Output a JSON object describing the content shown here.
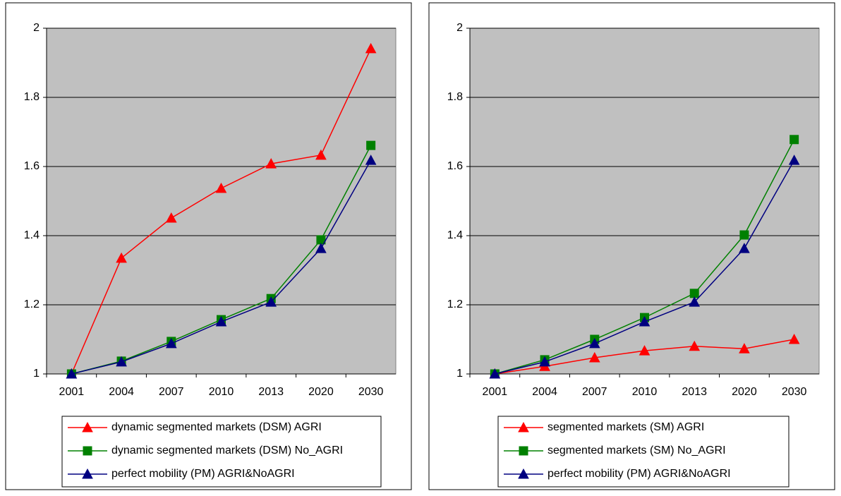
{
  "chart_data": [
    {
      "type": "line",
      "categories": [
        "2001",
        "2004",
        "2007",
        "2010",
        "2013",
        "2020",
        "2030"
      ],
      "ylim": [
        1,
        2
      ],
      "yticks": [
        1,
        1.2,
        1.4,
        1.6,
        1.8,
        2
      ],
      "grid": true,
      "series": [
        {
          "name": "dynamic segmented markets (DSM)  AGRI",
          "color": "#ff0000",
          "marker": "triangle",
          "values": [
            1.0,
            1.335,
            1.451,
            1.537,
            1.608,
            1.633,
            1.941
          ]
        },
        {
          "name": "dynamic segmented markets (DSM)  No_AGRI",
          "color": "#008000",
          "marker": "square",
          "values": [
            1.0,
            1.037,
            1.094,
            1.157,
            1.218,
            1.388,
            1.661
          ]
        },
        {
          "name": "perfect mobility (PM) AGRI&NoAGRI",
          "color": "#000080",
          "marker": "triangle",
          "values": [
            1.0,
            1.035,
            1.088,
            1.151,
            1.208,
            1.363,
            1.618
          ]
        }
      ]
    },
    {
      "type": "line",
      "categories": [
        "2001",
        "2004",
        "2007",
        "2010",
        "2013",
        "2020",
        "2030"
      ],
      "ylim": [
        1,
        2
      ],
      "yticks": [
        1,
        1.2,
        1.4,
        1.6,
        1.8,
        2
      ],
      "grid": true,
      "series": [
        {
          "name": "segmented markets (SM) AGRI",
          "color": "#ff0000",
          "marker": "triangle",
          "values": [
            1.0,
            1.022,
            1.047,
            1.067,
            1.08,
            1.073,
            1.1
          ]
        },
        {
          "name": "segmented markets (SM) No_AGRI",
          "color": "#008000",
          "marker": "square",
          "values": [
            1.0,
            1.041,
            1.1,
            1.163,
            1.233,
            1.402,
            1.678
          ]
        },
        {
          "name": "perfect mobility (PM) AGRI&NoAGRI",
          "color": "#000080",
          "marker": "triangle",
          "values": [
            1.0,
            1.035,
            1.088,
            1.151,
            1.208,
            1.363,
            1.618
          ]
        }
      ]
    }
  ]
}
